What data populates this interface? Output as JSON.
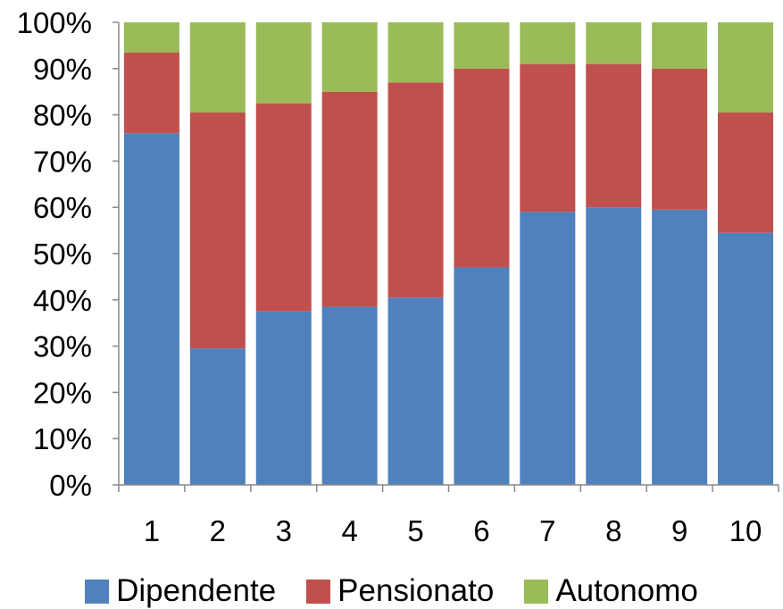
{
  "chart_data": {
    "type": "bar",
    "stacked": true,
    "percent": true,
    "categories": [
      "1",
      "2",
      "3",
      "4",
      "5",
      "6",
      "7",
      "8",
      "9",
      "10"
    ],
    "series": [
      {
        "name": "Dipendente",
        "color": "#4F81BD",
        "values": [
          76,
          29.5,
          37.5,
          38.5,
          40.5,
          47,
          59,
          60,
          59.5,
          54.5
        ]
      },
      {
        "name": "Pensionato",
        "color": "#C0504D",
        "values": [
          17.5,
          51,
          45,
          46.5,
          46.5,
          43,
          32,
          31,
          30.5,
          26
        ]
      },
      {
        "name": "Autonomo",
        "color": "#9BBB59",
        "values": [
          6.5,
          19.5,
          17.5,
          15,
          13,
          10,
          9,
          9,
          10,
          19.5
        ]
      }
    ],
    "ylim": [
      0,
      100
    ],
    "yticks": [
      "0%",
      "10%",
      "20%",
      "30%",
      "40%",
      "50%",
      "60%",
      "70%",
      "80%",
      "90%",
      "100%"
    ],
    "grid": false,
    "legend_position": "bottom"
  }
}
